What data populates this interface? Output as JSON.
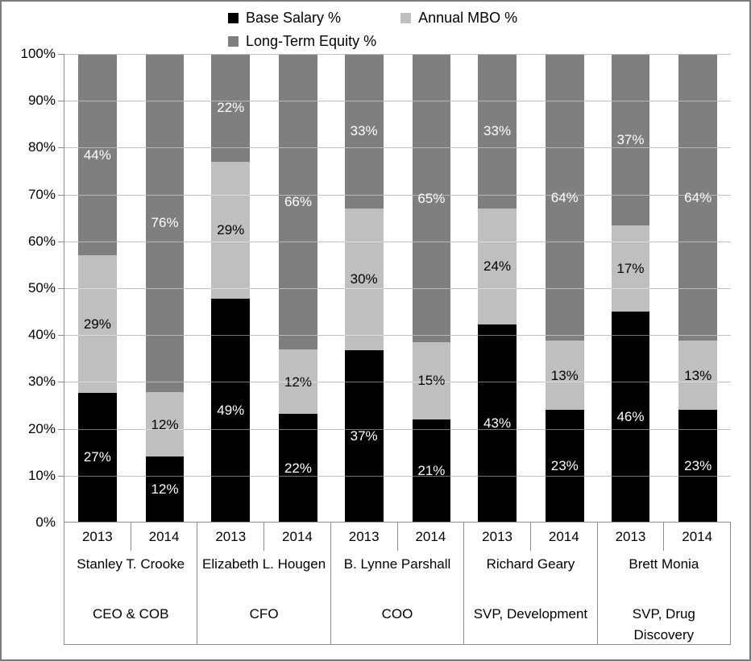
{
  "colors": {
    "frame_border": "#7b7b7b",
    "axis_line": "#8c8c8c",
    "background": "#ffffff"
  },
  "y_axis_ticks": [
    "100%",
    "90%",
    "80%",
    "70%",
    "60%",
    "50%",
    "40%",
    "30%",
    "20%",
    "10%",
    "0%"
  ],
  "chart_data": {
    "type": "bar",
    "stacked": true,
    "grid": true,
    "legend_position": "top",
    "ylim": [
      0,
      100
    ],
    "y_tick_step": 10,
    "value_suffix": "%",
    "series": [
      {
        "name": "Base Salary %",
        "color": "#000000",
        "label_color": "#ffffff"
      },
      {
        "name": "Annual MBO %",
        "color": "#bfbfbf",
        "label_color": "#000000"
      },
      {
        "name": "Long-Term Equity %",
        "color": "#7f7f7f",
        "label_color": "#ffffff"
      }
    ],
    "groups": [
      {
        "person": "Stanley T. Crooke",
        "title": "CEO & COB",
        "bars": [
          {
            "year": "2013",
            "values": [
              27,
              29,
              44
            ]
          },
          {
            "year": "2014",
            "values": [
              12,
              12,
              76
            ]
          }
        ]
      },
      {
        "person": "Elizabeth L. Hougen",
        "title": "CFO",
        "bars": [
          {
            "year": "2013",
            "values": [
              49,
              29,
              22
            ]
          },
          {
            "year": "2014",
            "values": [
              22,
              12,
              66
            ]
          }
        ]
      },
      {
        "person": "B. Lynne Parshall",
        "title": "COO",
        "bars": [
          {
            "year": "2013",
            "values": [
              37,
              30,
              33
            ]
          },
          {
            "year": "2014",
            "values": [
              21,
              15,
              65
            ]
          }
        ]
      },
      {
        "person": "Richard Geary",
        "title": "SVP, Development",
        "bars": [
          {
            "year": "2013",
            "values": [
              43,
              24,
              33
            ]
          },
          {
            "year": "2014",
            "values": [
              23,
              13,
              64
            ]
          }
        ]
      },
      {
        "person": "Brett Monia",
        "title": "SVP, Drug Discovery",
        "bars": [
          {
            "year": "2013",
            "values": [
              46,
              17,
              37
            ]
          },
          {
            "year": "2014",
            "values": [
              23,
              13,
              64
            ]
          }
        ]
      }
    ]
  }
}
